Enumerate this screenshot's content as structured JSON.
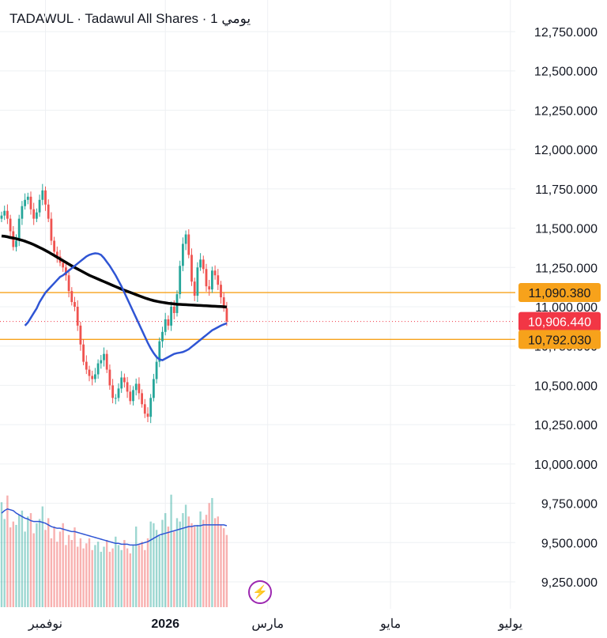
{
  "header": {
    "title": "TADAWUL · Tadawul All Shares · 1 يومي"
  },
  "colors": {
    "up": "#26a69a",
    "down": "#ef5350",
    "ma_long": "#000000",
    "ma_short": "#2f55d4",
    "orange": "#f7a21b",
    "last_price": "#f23645"
  },
  "chart_data": {
    "type": "candlestick",
    "title": "",
    "ylabel": "",
    "xlabel": "",
    "ylim": [
      9150,
      12850
    ],
    "y_ticks": [
      "12,750.000",
      "12,500.000",
      "12,250.000",
      "12,000.000",
      "11,750.000",
      "11,500.000",
      "11,250.000",
      "11,000.000",
      "10,750.000",
      "10,500.000",
      "10,250.000",
      "10,000.000",
      "9,750.000",
      "9,500.000",
      "9,250.000"
    ],
    "y_tick_values": [
      12750,
      12500,
      12250,
      12000,
      11750,
      11500,
      11250,
      11000,
      10750,
      10500,
      10250,
      10000,
      9750,
      9500,
      9250
    ],
    "x_ticks": [
      {
        "label": "نوفمبر",
        "bar": 15,
        "bold": false
      },
      {
        "label": "2026",
        "bar": 56,
        "bold": true
      },
      {
        "label": "مارس",
        "bar": 91,
        "bold": false
      },
      {
        "label": "مايو",
        "bar": 133,
        "bold": false
      },
      {
        "label": "يوليو",
        "bar": 174,
        "bold": false
      }
    ],
    "price_labels": [
      {
        "value": "11,090.380",
        "price": 11090.38,
        "style": "orange"
      },
      {
        "value": "10,906.440",
        "price": 10906.44,
        "style": "last"
      },
      {
        "value": "10,792.030",
        "price": 10792.03,
        "style": "orange"
      }
    ],
    "close": [
      11580,
      11610,
      11560,
      11480,
      11380,
      11420,
      11560,
      11640,
      11680,
      11700,
      11620,
      11560,
      11600,
      11680,
      11740,
      11650,
      11560,
      11420,
      11350,
      11320,
      11280,
      11250,
      11200,
      11100,
      11030,
      11000,
      10880,
      10760,
      10650,
      10600,
      10560,
      10540,
      10570,
      10640,
      10660,
      10700,
      10600,
      10500,
      10420,
      10420,
      10480,
      10550,
      10520,
      10460,
      10400,
      10470,
      10510,
      10450,
      10380,
      10320,
      10300,
      10420,
      10540,
      10650,
      10780,
      10840,
      10920,
      10880,
      11000,
      10960,
      11080,
      11260,
      11400,
      11460,
      11330,
      11160,
      11070,
      11250,
      11300,
      11240,
      11130,
      11110,
      11230,
      11200,
      11140,
      11060,
      10990,
      10906
    ],
    "ma_long": [
      11450,
      11448,
      11445,
      11440,
      11437,
      11433,
      11428,
      11423,
      11417,
      11410,
      11403,
      11395,
      11386,
      11377,
      11368,
      11358,
      11348,
      11337,
      11326,
      11315,
      11304,
      11293,
      11282,
      11271,
      11260,
      11250,
      11240,
      11230,
      11220,
      11210,
      11200,
      11192,
      11184,
      11176,
      11168,
      11160,
      11152,
      11144,
      11136,
      11128,
      11120,
      11112,
      11105,
      11098,
      11091,
      11084,
      11077,
      11070,
      11063,
      11056,
      11050,
      11044,
      11039,
      11035,
      11031,
      11028,
      11025,
      11022,
      11020,
      11018,
      11016,
      11015,
      11014,
      11013,
      11012,
      11011,
      11010,
      11009,
      11008,
      11007,
      11006,
      11005,
      11004,
      11003,
      11002,
      11001,
      11000,
      10998
    ],
    "ma_short": [
      10880,
      10900,
      10930,
      10960,
      10990,
      11030,
      11060,
      11090,
      11110,
      11130,
      11150,
      11170,
      11190,
      11200,
      11215,
      11230,
      11245,
      11260,
      11275,
      11290,
      11305,
      11320,
      11330,
      11336,
      11340,
      11338,
      11330,
      11310,
      11285,
      11260,
      11230,
      11200,
      11165,
      11130,
      11090,
      11050,
      11010,
      10970,
      10930,
      10890,
      10850,
      10810,
      10770,
      10735,
      10705,
      10680,
      10665,
      10660,
      10670,
      10680,
      10690,
      10700,
      10705,
      10708,
      10712,
      10720,
      10730,
      10745,
      10760,
      10775,
      10790,
      10805,
      10820,
      10835,
      10850,
      10860,
      10870,
      10880,
      10888,
      10895
    ],
    "volume": [
      1.25,
      1.05,
      1.33,
      0.95,
      1.02,
      0.98,
      1.1,
      1.15,
      0.9,
      1.08,
      1.12,
      0.88,
      1.0,
      1.05,
      1.2,
      0.92,
      1.06,
      0.82,
      0.96,
      0.78,
      0.9,
      1.0,
      0.74,
      0.86,
      0.8,
      0.95,
      0.72,
      0.82,
      0.7,
      0.76,
      0.82,
      0.68,
      0.74,
      0.78,
      0.66,
      0.72,
      0.8,
      0.66,
      0.7,
      0.84,
      0.74,
      0.68,
      0.8,
      0.7,
      0.64,
      0.74,
      0.96,
      0.74,
      0.78,
      0.68,
      0.82,
      1.02,
      1.0,
      0.92,
      0.85,
      1.04,
      1.12,
      0.96,
      1.34,
      0.9,
      1.06,
      1.02,
      1.12,
      1.22,
      1.08,
      1.0,
      0.96,
      0.98,
      1.14,
      1.04,
      1.1,
      1.24,
      1.3,
      1.06,
      1.08,
      0.98,
      0.94,
      0.86
    ],
    "volume_ma": [
      1.12,
      1.15,
      1.17,
      1.16,
      1.15,
      1.12,
      1.1,
      1.08,
      1.06,
      1.05,
      1.03,
      1.02,
      1.02,
      1.02,
      1.01,
      1.0,
      0.98,
      0.96,
      0.95,
      0.94,
      0.94,
      0.93,
      0.92,
      0.91,
      0.9,
      0.9,
      0.89,
      0.88,
      0.87,
      0.86,
      0.85,
      0.84,
      0.83,
      0.82,
      0.81,
      0.8,
      0.79,
      0.78,
      0.77,
      0.76,
      0.76,
      0.75,
      0.75,
      0.75,
      0.74,
      0.74,
      0.74,
      0.75,
      0.76,
      0.77,
      0.78,
      0.8,
      0.82,
      0.84,
      0.86,
      0.87,
      0.88,
      0.89,
      0.9,
      0.91,
      0.92,
      0.93,
      0.94,
      0.95,
      0.96,
      0.96,
      0.97,
      0.97,
      0.97,
      0.98,
      0.98,
      0.98,
      0.98,
      0.98,
      0.98,
      0.98,
      0.98,
      0.97
    ]
  }
}
